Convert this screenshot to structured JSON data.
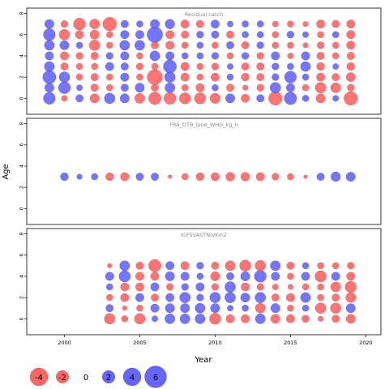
{
  "chart_data": {
    "type": "scatter",
    "subtype": "bubble-residual-panels",
    "xlabel": "Year",
    "ylabel": "Age",
    "x_ticks": [
      2000,
      2005,
      2010,
      2015,
      2020
    ],
    "y_ticks": [
      0,
      2,
      4,
      6,
      8
    ],
    "xlim": [
      1997.5,
      2021
    ],
    "ylim": [
      -1.5,
      8.5
    ],
    "colors": {
      "positive": "#6666ff",
      "negative": "#ff6666",
      "edge_positive": "#3333cc",
      "edge_negative": "#cc3333"
    },
    "panels": [
      {
        "title": "Residual catch",
        "years": [
          1999,
          2000,
          2001,
          2002,
          2003,
          2004,
          2005,
          2006,
          2007,
          2008,
          2009,
          2010,
          2011,
          2012,
          2013,
          2014,
          2015,
          2016,
          2017,
          2018,
          2019
        ],
        "ages": [
          0,
          1,
          2,
          3,
          4,
          5,
          6,
          7
        ],
        "values": [
          [
            2.0,
            -0.5,
            0.8,
            -1.2,
            1.6,
            1.2,
            -1.4,
            -2.2,
            -2.0,
            -1.8,
            -1.8,
            -1.5,
            1.2,
            -1.0,
            0.8,
            -2.6,
            2.2,
            0.6,
            -1.2,
            0.5,
            -2.6
          ],
          [
            1.2,
            2.0,
            0.5,
            -0.8,
            -0.6,
            0.8,
            1.2,
            -0.8,
            1.4,
            -0.6,
            -1.0,
            0.6,
            -0.8,
            -0.4,
            -0.7,
            1.6,
            1.0,
            -0.6,
            -1.6,
            -1.4,
            -0.7
          ],
          [
            2.4,
            1.6,
            -0.6,
            -0.8,
            -0.6,
            1.0,
            -0.6,
            -3.2,
            1.6,
            -1.0,
            -0.6,
            -1.0,
            0.6,
            -0.9,
            -0.8,
            0.7,
            2.0,
            0.6,
            -1.0,
            -0.8,
            -1.2
          ],
          [
            1.4,
            -0.8,
            -0.6,
            -0.6,
            1.0,
            0.8,
            -0.7,
            -0.6,
            2.4,
            -1.0,
            -0.6,
            -0.7,
            0.5,
            -0.8,
            -0.8,
            0.7,
            0.6,
            1.4,
            -0.9,
            0.5,
            -0.9
          ],
          [
            1.0,
            -1.0,
            -0.7,
            -0.8,
            0.7,
            1.0,
            -0.6,
            1.4,
            1.0,
            0.6,
            0.6,
            0.7,
            -0.6,
            0.7,
            -0.7,
            1.0,
            -0.5,
            1.0,
            -0.8,
            -0.6,
            -0.8
          ],
          [
            1.4,
            1.2,
            0.6,
            -1.6,
            -0.6,
            1.4,
            1.4,
            -0.8,
            -1.0,
            -0.6,
            0.6,
            -0.6,
            0.8,
            -0.8,
            0.7,
            -0.6,
            -0.6,
            -0.4,
            -0.7,
            -0.6,
            -1.0
          ],
          [
            2.0,
            -1.6,
            -1.0,
            -1.2,
            -0.6,
            1.0,
            1.0,
            3.4,
            -1.0,
            -0.8,
            0.7,
            0.8,
            -0.8,
            0.6,
            0.6,
            -0.6,
            0.7,
            0.5,
            -0.6,
            0.6,
            -1.0
          ],
          [
            1.2,
            -0.7,
            -2.0,
            -1.4,
            -2.6,
            0.8,
            0.6,
            1.2,
            1.3,
            -1.0,
            -0.8,
            1.0,
            0.5,
            0.6,
            0.6,
            -0.5,
            -0.6,
            -0.4,
            -1.0,
            -0.8,
            -1.0
          ]
        ]
      },
      {
        "title": "FRA_OTB_lpue_WHG_kg_h",
        "years": [
          2000,
          2001,
          2002,
          2003,
          2004,
          2005,
          2006,
          2007,
          2008,
          2009,
          2010,
          2011,
          2012,
          2013,
          2014,
          2015,
          2016,
          2017,
          2018,
          2019
        ],
        "ages": [
          3
        ],
        "values": [
          [
            0.9,
            0.4,
            0.6,
            -0.9,
            -1.0,
            0.8,
            0.8,
            -0.2,
            -0.6,
            -0.9,
            -1.0,
            -1.1,
            -1.1,
            -1.0,
            -0.7,
            -0.6,
            -0.2,
            0.8,
            1.3,
            1.2
          ]
        ]
      },
      {
        "title": "IGFSVASTNo/Km2",
        "years": [
          2003,
          2004,
          2005,
          2006,
          2007,
          2008,
          2009,
          2010,
          2011,
          2012,
          2013,
          2014,
          2015,
          2016,
          2017,
          2018,
          2019
        ],
        "ages": [
          0,
          1,
          2,
          3,
          4,
          5
        ],
        "values": [
          [
            -1.6,
            -0.6,
            -1.6,
            0.5,
            1.4,
            1.4,
            1.4,
            -1.8,
            -1.0,
            -1.0,
            1.4,
            -1.2,
            -1.0,
            -0.8,
            -0.4,
            -0.8,
            -1.2
          ],
          [
            0.8,
            -0.3,
            -0.6,
            1.0,
            1.2,
            1.2,
            1.4,
            1.2,
            0.5,
            0.6,
            -1.4,
            1.2,
            -0.6,
            0.6,
            -1.6,
            -1.6,
            1.2
          ],
          [
            -0.6,
            -1.0,
            1.0,
            -0.8,
            1.0,
            1.6,
            0.7,
            1.6,
            1.6,
            1.2,
            1.6,
            -0.8,
            -1.0,
            1.4,
            -0.6,
            -0.8,
            -1.4
          ],
          [
            0.6,
            -1.0,
            -1.0,
            1.0,
            -0.7,
            0.7,
            1.0,
            -0.7,
            1.6,
            -1.0,
            -0.7,
            -0.5,
            -0.4,
            -0.6,
            -0.6,
            -1.4,
            -1.8
          ],
          [
            1.0,
            1.8,
            -1.0,
            -1.0,
            1.2,
            1.0,
            0.6,
            -1.2,
            0.8,
            1.2,
            2.0,
            1.0,
            -0.6,
            1.0,
            -1.8,
            1.0,
            -1.0
          ],
          [
            -0.3,
            1.4,
            -0.8,
            -2.2,
            1.0,
            -1.0,
            0.7,
            -0.8,
            -1.4,
            -1.8,
            -1.6,
            1.4,
            -0.8,
            0.6,
            -0.6,
            -0.6,
            -0.7
          ]
        ]
      }
    ],
    "legend": {
      "placement": "bottom-left",
      "items": [
        {
          "label": "-4",
          "value": -4
        },
        {
          "label": "-2",
          "value": -2
        },
        {
          "label": "0",
          "value": 0
        },
        {
          "label": "2",
          "value": 2
        },
        {
          "label": "4",
          "value": 4
        },
        {
          "label": "6",
          "value": 6
        }
      ]
    }
  }
}
